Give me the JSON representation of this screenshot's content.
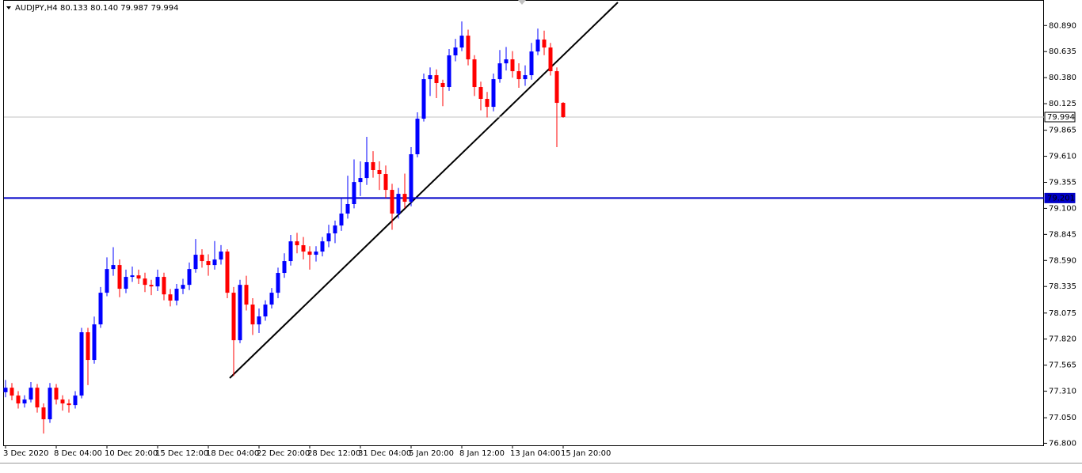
{
  "chart_data": {
    "type": "candlestick",
    "title": "AUDJPY,H4  80.133 80.140 79.987 79.994",
    "categories": [
      "3 Dec 2020",
      null,
      null,
      null,
      null,
      null,
      null,
      null,
      "8 Dec 04:00",
      null,
      null,
      null,
      null,
      null,
      null,
      null,
      "10 Dec 20:00",
      null,
      null,
      null,
      null,
      null,
      null,
      null,
      "15 Dec 12:00",
      null,
      null,
      null,
      null,
      null,
      null,
      null,
      "18 Dec 04:00",
      null,
      null,
      null,
      null,
      null,
      null,
      null,
      "22 Dec 20:00",
      null,
      null,
      null,
      null,
      null,
      null,
      null,
      "28 Dec 12:00",
      null,
      null,
      null,
      null,
      null,
      null,
      null,
      "31 Dec 04:00",
      null,
      null,
      null,
      null,
      null,
      null,
      null,
      "5 Jan 20:00",
      null,
      null,
      null,
      null,
      null,
      null,
      null,
      "8 Jan 12:00",
      null,
      null,
      null,
      null,
      null,
      null,
      null,
      "13 Jan 04:00",
      null,
      null,
      null,
      null,
      null,
      null,
      null,
      "15 Jan 20:00"
    ],
    "open": [
      77.3,
      77.344,
      77.267,
      77.19,
      77.228,
      77.344,
      77.151,
      77.035,
      77.344,
      77.228,
      77.19,
      77.174,
      77.267,
      77.887,
      77.616,
      77.964,
      78.274,
      78.506,
      78.545,
      78.313,
      78.429,
      78.444,
      78.413,
      78.351,
      78.336,
      78.429,
      78.258,
      78.197,
      78.313,
      78.351,
      78.506,
      78.646,
      78.584,
      78.545,
      78.599,
      78.677,
      78.274,
      77.809,
      78.351,
      78.158,
      77.964,
      78.042,
      78.158,
      78.274,
      78.468,
      78.584,
      78.777,
      78.739,
      78.677,
      78.646,
      78.677,
      78.777,
      78.855,
      78.932,
      79.049,
      79.142,
      79.358,
      79.397,
      79.552,
      79.475,
      79.436,
      79.281,
      79.049,
      79.242,
      79.165,
      79.63,
      79.978,
      80.365,
      80.404,
      80.327,
      80.288,
      80.598,
      80.675,
      80.791,
      80.559,
      80.288,
      80.172,
      80.094,
      80.365,
      80.52,
      80.559,
      80.443,
      80.365,
      80.404,
      80.636,
      80.753,
      80.675,
      80.443,
      80.133
    ],
    "high": [
      77.42,
      77.39,
      77.31,
      77.27,
      77.4,
      77.38,
      77.19,
      77.39,
      77.38,
      77.27,
      77.23,
      77.31,
      77.93,
      77.93,
      78.04,
      78.33,
      78.62,
      78.72,
      78.6,
      78.5,
      78.53,
      78.5,
      78.47,
      78.4,
      78.5,
      78.47,
      78.31,
      78.36,
      78.41,
      78.57,
      78.8,
      78.7,
      78.65,
      78.78,
      78.74,
      78.7,
      78.33,
      78.4,
      78.44,
      78.22,
      78.12,
      78.2,
      78.32,
      78.52,
      78.66,
      78.84,
      78.86,
      78.82,
      78.73,
      78.73,
      78.82,
      78.94,
      78.98,
      79.2,
      79.42,
      79.58,
      79.56,
      79.8,
      79.66,
      79.56,
      79.52,
      79.34,
      79.3,
      79.44,
      79.7,
      80.04,
      80.42,
      80.48,
      80.46,
      80.36,
      80.66,
      80.76,
      80.93,
      80.85,
      80.6,
      80.34,
      80.24,
      80.42,
      80.65,
      80.68,
      80.64,
      80.52,
      80.5,
      80.72,
      80.86,
      80.84,
      80.72,
      80.48,
      80.14
    ],
    "low": [
      77.25,
      77.22,
      77.14,
      77.15,
      77.2,
      77.1,
      76.895,
      77.0,
      77.18,
      77.12,
      77.1,
      77.14,
      77.24,
      77.37,
      77.58,
      77.93,
      78.24,
      78.44,
      78.23,
      78.27,
      78.38,
      78.36,
      78.28,
      78.25,
      78.29,
      78.2,
      78.14,
      78.15,
      78.26,
      78.3,
      78.47,
      78.52,
      78.44,
      78.5,
      78.55,
      78.22,
      77.46,
      77.78,
      78.1,
      77.86,
      77.88,
      78.0,
      78.12,
      78.22,
      78.42,
      78.54,
      78.66,
      78.6,
      78.5,
      78.58,
      78.63,
      78.72,
      78.76,
      78.88,
      79.0,
      79.1,
      79.22,
      79.33,
      79.4,
      79.28,
      79.2,
      78.89,
      79.0,
      79.1,
      79.12,
      79.6,
      79.95,
      80.2,
      80.18,
      80.1,
      80.25,
      80.54,
      80.64,
      80.5,
      80.2,
      80.06,
      79.99,
      80.05,
      80.33,
      80.45,
      80.38,
      80.28,
      80.3,
      80.36,
      80.6,
      80.6,
      80.4,
      79.7,
      79.987
    ],
    "close": [
      77.344,
      77.267,
      77.19,
      77.228,
      77.344,
      77.151,
      77.035,
      77.344,
      77.228,
      77.19,
      77.174,
      77.267,
      77.887,
      77.616,
      77.964,
      78.274,
      78.506,
      78.545,
      78.313,
      78.429,
      78.444,
      78.413,
      78.351,
      78.336,
      78.429,
      78.258,
      78.197,
      78.313,
      78.351,
      78.506,
      78.646,
      78.584,
      78.545,
      78.599,
      78.677,
      78.274,
      77.809,
      78.351,
      78.158,
      77.964,
      78.042,
      78.158,
      78.274,
      78.468,
      78.584,
      78.777,
      78.739,
      78.677,
      78.646,
      78.677,
      78.777,
      78.855,
      78.932,
      79.049,
      79.142,
      79.358,
      79.397,
      79.552,
      79.475,
      79.436,
      79.281,
      79.049,
      79.242,
      79.165,
      79.63,
      79.978,
      80.365,
      80.404,
      80.327,
      80.288,
      80.598,
      80.675,
      80.791,
      80.559,
      80.288,
      80.172,
      80.094,
      80.365,
      80.52,
      80.559,
      80.443,
      80.365,
      80.404,
      80.636,
      80.753,
      80.675,
      80.443,
      80.133,
      79.994
    ],
    "up_color": "#0000ff",
    "down_color": "#ff0000",
    "ylim": [
      76.78,
      81.14
    ],
    "yticks": [
      {
        "value": 80.89,
        "label": "80.890"
      },
      80.635,
      {
        "value": 80.38,
        "label": "80.380"
      },
      80.125,
      79.865,
      {
        "value": 79.61,
        "label": "79.610"
      },
      79.355,
      {
        "value": 79.1,
        "label": "79.100"
      },
      78.845,
      {
        "value": 78.59,
        "label": "78.590"
      },
      78.335,
      78.075,
      {
        "value": 77.82,
        "label": "77.820"
      },
      77.565,
      {
        "value": 77.31,
        "label": "77.310"
      },
      {
        "value": 77.05,
        "label": "77.050"
      },
      {
        "value": 76.8,
        "label": "76.800"
      }
    ],
    "hlines": [
      {
        "value": 79.994,
        "color": "#c0c0c0"
      },
      {
        "value": 79.201,
        "color": "#0000c8"
      }
    ]
  }
}
